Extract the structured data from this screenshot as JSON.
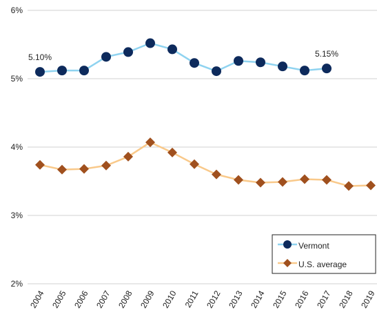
{
  "chart_data": {
    "type": "line",
    "categories": [
      "2004",
      "2005",
      "2006",
      "2007",
      "2008",
      "2009",
      "2010",
      "2011",
      "2012",
      "2013",
      "2014",
      "2015",
      "2016",
      "2017",
      "2018",
      "2019"
    ],
    "series": [
      {
        "name": "Vermont",
        "color": "#0d2a5c",
        "line_color": "#8fd3f0",
        "marker": "circle",
        "values": [
          5.1,
          5.12,
          5.12,
          5.32,
          5.39,
          5.52,
          5.43,
          5.23,
          5.11,
          5.26,
          5.24,
          5.18,
          5.12,
          5.15,
          null,
          null
        ],
        "value_labels": [
          "5.10%",
          null,
          null,
          null,
          null,
          null,
          null,
          null,
          null,
          null,
          null,
          null,
          null,
          "5.15%",
          null,
          null
        ]
      },
      {
        "name": "U.S. average",
        "color": "#a0501e",
        "line_color": "#f9c98a",
        "marker": "diamond",
        "values": [
          3.74,
          3.67,
          3.68,
          3.73,
          3.86,
          4.07,
          3.92,
          3.75,
          3.6,
          3.52,
          3.48,
          3.49,
          3.53,
          3.52,
          3.43,
          3.44
        ]
      }
    ],
    "ylim": [
      2,
      6
    ],
    "yticks": [
      {
        "value": 2,
        "label": "2%"
      },
      {
        "value": 3,
        "label": "3%"
      },
      {
        "value": 4,
        "label": "4%"
      },
      {
        "value": 5,
        "label": "5%"
      },
      {
        "value": 6,
        "label": "6%"
      }
    ],
    "grid": true,
    "legend": "lower right"
  }
}
